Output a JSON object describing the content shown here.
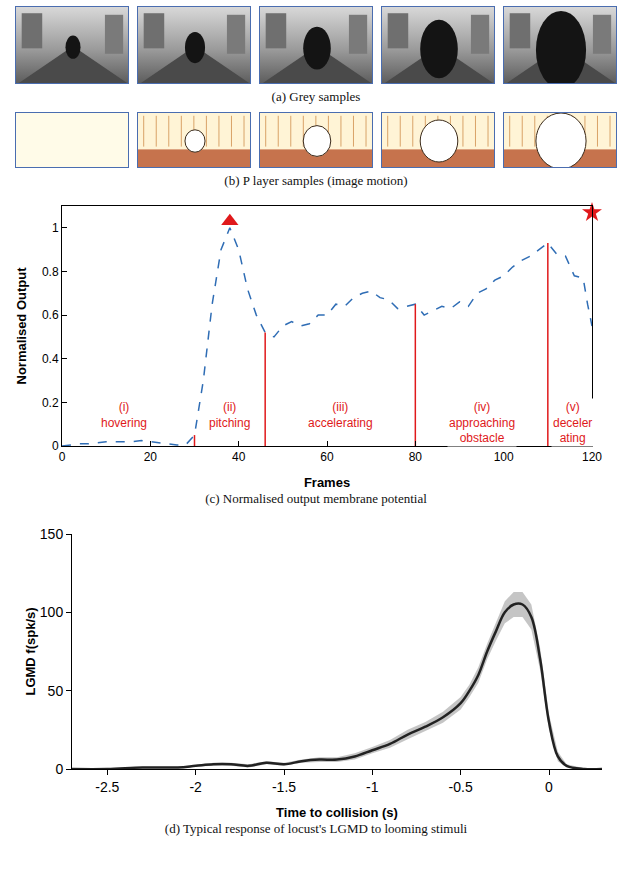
{
  "image_panels": [
    {
      "caption": "(a) Grey samples"
    },
    {
      "caption": "(b) P layer samples (image motion)"
    }
  ],
  "chart_data": [
    {
      "type": "line",
      "title": "(c) Normalised output membrane potential",
      "x_label": "Frames",
      "y_label": "Normalised Output",
      "x": [
        0,
        2,
        4,
        6,
        8,
        10,
        12,
        14,
        16,
        18,
        20,
        22,
        24,
        26,
        28,
        30,
        32,
        34,
        36,
        38,
        40,
        42,
        44,
        46,
        48,
        50,
        52,
        54,
        56,
        58,
        60,
        62,
        64,
        66,
        68,
        70,
        72,
        74,
        76,
        78,
        80,
        82,
        84,
        86,
        88,
        90,
        92,
        94,
        96,
        98,
        100,
        102,
        104,
        106,
        108,
        110,
        112,
        114,
        116,
        118,
        119,
        120
      ],
      "values": [
        0,
        0.005,
        0.01,
        0.01,
        0.015,
        0.02,
        0.02,
        0.02,
        0.02,
        0.025,
        0.02,
        0.015,
        0.01,
        0.005,
        0.005,
        0.05,
        0.3,
        0.65,
        0.9,
        1.0,
        0.9,
        0.72,
        0.6,
        0.52,
        0.5,
        0.55,
        0.57,
        0.55,
        0.56,
        0.6,
        0.6,
        0.65,
        0.64,
        0.68,
        0.7,
        0.71,
        0.68,
        0.67,
        0.63,
        0.64,
        0.65,
        0.6,
        0.62,
        0.64,
        0.63,
        0.66,
        0.64,
        0.7,
        0.72,
        0.76,
        0.78,
        0.82,
        0.85,
        0.87,
        0.9,
        0.93,
        0.88,
        0.87,
        0.78,
        0.77,
        0.65,
        0.55
      ],
      "color": "#2f6db5",
      "line_style": "dashed",
      "xlim": [
        0,
        120
      ],
      "ylim": [
        0,
        1.1
      ],
      "xticks": [
        0,
        20,
        40,
        60,
        80,
        100,
        120
      ],
      "yticks": [
        0,
        0.2,
        0.4,
        0.6,
        0.8,
        1
      ],
      "grid": false,
      "dividers": {
        "x": [
          30,
          46,
          80,
          110
        ],
        "y": [
          0.05,
          0.52,
          0.65,
          0.93
        ],
        "color": "#e0191b"
      },
      "annotations": [
        {
          "x": 14,
          "y": 0.22,
          "lines": [
            "(i)",
            "hovering"
          ],
          "color": "#e0191b"
        },
        {
          "x": 38,
          "y": 0.22,
          "lines": [
            "(ii)",
            "pitching"
          ],
          "color": "#e0191b"
        },
        {
          "x": 63,
          "y": 0.22,
          "lines": [
            "(iii)",
            "accelerating"
          ],
          "color": "#e0191b"
        },
        {
          "x": 95,
          "y": 0.22,
          "lines": [
            "(iv)",
            "approaching",
            "obstacle"
          ],
          "color": "#e0191b"
        },
        {
          "x": 115.5,
          "y": 0.22,
          "lines": [
            "(v)",
            "deceler",
            "ating"
          ],
          "color": "#e0191b"
        }
      ],
      "markers": [
        {
          "x": 38,
          "y": 1.03,
          "marker": "triangle-up",
          "color": "#e0191b"
        },
        {
          "x": 120,
          "y": 1.07,
          "marker": "star",
          "color": "#e0191b"
        }
      ]
    },
    {
      "type": "line",
      "title": "(d) Typical response of locust's LGMD to looming stimuli",
      "x_label": "Time to collision (s)",
      "y_label": "LGMD f(spk/s)",
      "x": [
        -2.7,
        -2.5,
        -2.3,
        -2.1,
        -2.0,
        -1.9,
        -1.8,
        -1.7,
        -1.6,
        -1.5,
        -1.4,
        -1.3,
        -1.2,
        -1.1,
        -1.0,
        -0.9,
        -0.8,
        -0.7,
        -0.6,
        -0.5,
        -0.45,
        -0.4,
        -0.35,
        -0.3,
        -0.25,
        -0.2,
        -0.15,
        -0.1,
        -0.05,
        0,
        0.05,
        0.1,
        0.2,
        0.3
      ],
      "values": [
        0,
        0,
        1,
        1,
        2,
        3,
        3,
        2,
        4,
        3,
        5,
        6,
        6,
        8,
        12,
        16,
        22,
        27,
        33,
        42,
        50,
        60,
        75,
        88,
        100,
        105,
        105,
        97,
        70,
        30,
        8,
        2,
        0,
        0
      ],
      "error": [
        0,
        0,
        0.5,
        0.5,
        0.5,
        1,
        1,
        1,
        1,
        1,
        1,
        1.5,
        1.5,
        2,
        2,
        2.5,
        3,
        3,
        3.5,
        4,
        4,
        5,
        5,
        6,
        7,
        8,
        8,
        8,
        7,
        5,
        3,
        1,
        0.5,
        0.5
      ],
      "color": "#222222",
      "xlim": [
        -2.7,
        0.3
      ],
      "ylim": [
        0,
        150
      ],
      "xticks": [
        -2.5,
        -2,
        -1.5,
        -1,
        -0.5,
        0
      ],
      "yticks": [
        0,
        50,
        100,
        150
      ],
      "grid": false
    }
  ]
}
